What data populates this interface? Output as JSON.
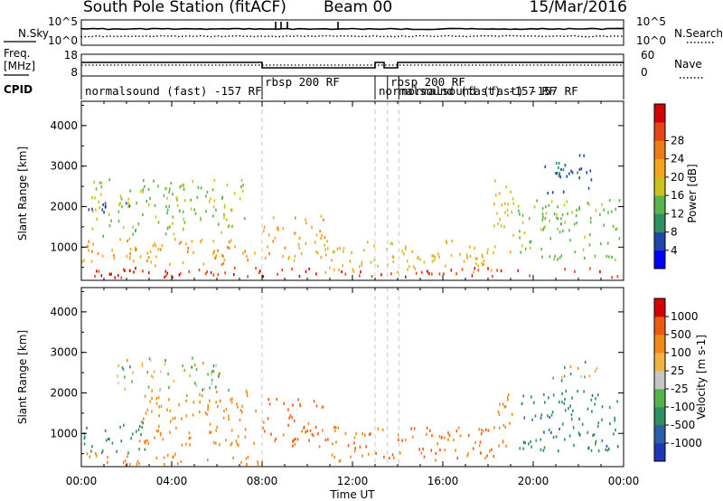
{
  "header": {
    "station": "South Pole Station (fitACF)",
    "beam": "Beam 00",
    "date": "15/Mar/2016"
  },
  "strips": {
    "nsky": {
      "label": "N.Sky",
      "right_label": "N.Search",
      "ticks": [
        "10^5",
        "10^0"
      ]
    },
    "freq": {
      "label": "Freq.",
      "unit": "[MHz]",
      "right_label": "Nave",
      "ticks_left": [
        "18",
        "8"
      ],
      "ticks_right": [
        "60",
        "0"
      ]
    },
    "cpid": {
      "label": "CPID",
      "modes": [
        {
          "text": "normalsound (fast)   -157 RF"
        },
        {
          "text": "rbsp 200  RF"
        },
        {
          "text": "normalsound (fast)   -157 RF"
        },
        {
          "text": "rbsp 200  RF"
        },
        {
          "text": "normalsound (fast)   -157 RF"
        }
      ]
    }
  },
  "axes": {
    "xlabel": "Time UT",
    "xticks": [
      "00:00",
      "04:00",
      "08:00",
      "12:00",
      "16:00",
      "20:00",
      "00:00"
    ],
    "ylabel": "Slant Range [km]",
    "yticks": [
      "1000",
      "2000",
      "3000",
      "4000"
    ]
  },
  "colorbars": {
    "power": {
      "label": "Power [dB]",
      "ticks": [
        "4",
        "8",
        "12",
        "16",
        "20",
        "24",
        "28"
      ],
      "colors": [
        "#0000ff",
        "#2046a8",
        "#2f8f62",
        "#5bb34d",
        "#c9c21c",
        "#f2a71a",
        "#f07a14",
        "#e8421a",
        "#d40000"
      ]
    },
    "velocity": {
      "label": "Velocity [m s-1]",
      "ticks": [
        "1000",
        "500",
        "100",
        "25",
        "-25",
        "-100",
        "-500",
        "-1000"
      ],
      "colors": [
        "#1f36b8",
        "#2c5fa8",
        "#2f8f62",
        "#58b24c",
        "#c6c6c6",
        "#f0b43c",
        "#f08a16",
        "#ee5a14",
        "#d60000"
      ]
    }
  },
  "chart_data": [
    {
      "type": "heatmap",
      "title": "Power",
      "xlabel": "Time UT",
      "ylabel": "Slant Range [km]",
      "xlim": [
        "00:00",
        "24:00"
      ],
      "ylim": [
        180,
        4600
      ],
      "colorbar_label": "Power [dB]",
      "colorbar_range": [
        0,
        32
      ],
      "mode_changes_UT": [
        8.0,
        13.0,
        13.55,
        14.05
      ],
      "bands": [
        {
          "t0": 0.1,
          "t1": 23.9,
          "r0": 280,
          "r1": 520,
          "value": 28
        },
        {
          "t0": 0.0,
          "t1": 7.7,
          "r0": 550,
          "r1": 1250,
          "value": 20
        },
        {
          "t0": 0.3,
          "t1": 7.2,
          "r0": 1300,
          "r1": 2700,
          "value": 14
        },
        {
          "t0": 0.3,
          "t1": 2.5,
          "r0": 1850,
          "r1": 2150,
          "value": 5
        },
        {
          "t0": 8.0,
          "t1": 10.8,
          "r0": 700,
          "r1": 1800,
          "value": 20
        },
        {
          "t0": 10.5,
          "t1": 18.3,
          "r0": 400,
          "r1": 1200,
          "value": 18
        },
        {
          "t0": 18.2,
          "t1": 19.1,
          "r0": 900,
          "r1": 2700,
          "value": 17
        },
        {
          "t0": 19.3,
          "t1": 23.8,
          "r0": 700,
          "r1": 2200,
          "value": 13
        },
        {
          "t0": 20.5,
          "t1": 22.6,
          "r0": 2300,
          "r1": 3300,
          "value": 6
        }
      ]
    },
    {
      "type": "heatmap",
      "title": "Velocity",
      "xlabel": "Time UT",
      "ylabel": "Slant Range [km]",
      "xlim": [
        "00:00",
        "24:00"
      ],
      "ylim": [
        180,
        4600
      ],
      "colorbar_label": "Velocity [m s-1]",
      "colorbar_range": [
        -1000,
        1000
      ],
      "mode_changes_UT": [
        8.0,
        13.0,
        13.55,
        14.05
      ],
      "bands": [
        {
          "t0": 0.0,
          "t1": 7.8,
          "r0": 250,
          "r1": 550,
          "value": -300
        },
        {
          "t0": 0.0,
          "t1": 2.8,
          "r0": 550,
          "r1": 1300,
          "value": 300
        },
        {
          "t0": 2.5,
          "t1": 7.7,
          "r0": 700,
          "r1": 2100,
          "value": -300
        },
        {
          "t0": 1.5,
          "t1": 6.5,
          "r0": 2100,
          "r1": 2900,
          "value": 10
        },
        {
          "t0": 8.0,
          "t1": 10.8,
          "r0": 700,
          "r1": 1900,
          "value": -600
        },
        {
          "t0": 10.8,
          "t1": 18.3,
          "r0": 350,
          "r1": 1200,
          "value": -500
        },
        {
          "t0": 18.2,
          "t1": 19.1,
          "r0": 600,
          "r1": 2100,
          "value": -300
        },
        {
          "t0": 19.3,
          "t1": 23.8,
          "r0": 600,
          "r1": 2100,
          "value": 400
        },
        {
          "t0": 20.8,
          "t1": 22.8,
          "r0": 2300,
          "r1": 2800,
          "value": 10
        }
      ]
    }
  ]
}
